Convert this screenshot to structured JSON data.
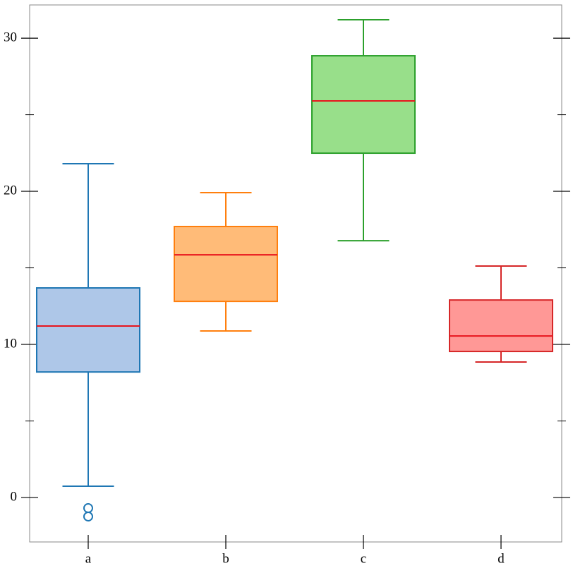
{
  "chart_data": {
    "type": "box",
    "categories": [
      "a",
      "b",
      "c",
      "d"
    ],
    "boxes": [
      {
        "color": "#1f77b4",
        "fill": "#aec7e8",
        "whislo": 0.74,
        "q1": 8.2,
        "med": 11.2,
        "q3": 13.69,
        "whishi": 21.8,
        "fliers": [
          -0.69,
          -1.24
        ]
      },
      {
        "color": "#ff7f0e",
        "fill": "#ffbb78",
        "whislo": 10.88,
        "q1": 12.81,
        "med": 15.85,
        "q3": 17.7,
        "whishi": 19.91,
        "fliers": []
      },
      {
        "color": "#2ca02c",
        "fill": "#98df8a",
        "whislo": 16.77,
        "q1": 22.49,
        "med": 25.9,
        "q3": 28.85,
        "whishi": 31.2,
        "fliers": []
      },
      {
        "color": "#d62728",
        "fill": "#ff9896",
        "whislo": 8.85,
        "q1": 9.54,
        "med": 10.55,
        "q3": 12.9,
        "whishi": 15.12,
        "fliers": []
      }
    ],
    "median_color": "#e8141c",
    "ylim": [
      -2.9,
      32.17
    ],
    "yticks": [
      0,
      10,
      20,
      30
    ],
    "yminorticks": [
      5,
      15,
      25
    ]
  }
}
